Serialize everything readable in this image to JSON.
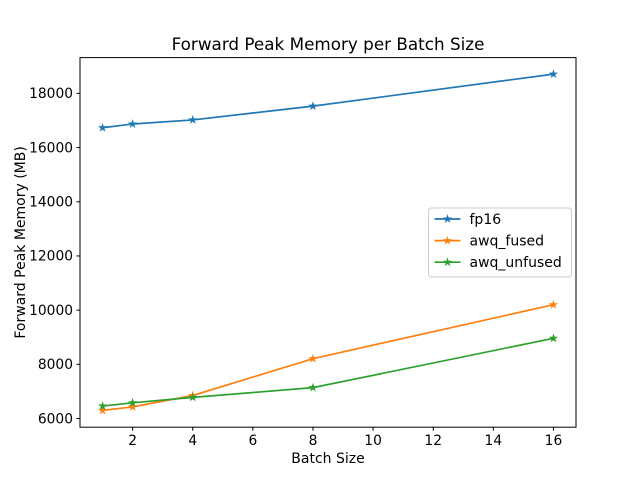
{
  "chart_data": {
    "type": "line",
    "title": "Forward Peak Memory per Batch Size",
    "xlabel": "Batch Size",
    "ylabel": "Forward Peak Memory (MB)",
    "x": [
      1,
      2,
      4,
      8,
      16
    ],
    "series": [
      {
        "name": "fp16",
        "color": "#1f77b4",
        "values": [
          16730,
          16870,
          17020,
          17530,
          18710
        ]
      },
      {
        "name": "awq_fused",
        "color": "#ff7f0e",
        "values": [
          6300,
          6430,
          6850,
          8210,
          10200
        ]
      },
      {
        "name": "awq_unfused",
        "color": "#2ca02c",
        "values": [
          6460,
          6580,
          6780,
          7140,
          8960
        ]
      }
    ],
    "marker": "star",
    "xlim": [
      0.25,
      16.75
    ],
    "ylim": [
      5680,
      19320
    ],
    "x_ticks": [
      2,
      4,
      6,
      8,
      10,
      12,
      14,
      16
    ],
    "y_ticks": [
      6000,
      8000,
      10000,
      12000,
      14000,
      16000,
      18000
    ],
    "grid": false,
    "legend": {
      "position": "center-right",
      "entries": [
        "fp16",
        "awq_fused",
        "awq_unfused"
      ]
    },
    "colors": {
      "background": "#ffffff",
      "spine": "#000000",
      "legend_border": "#cccccc",
      "text": "#000000"
    }
  }
}
